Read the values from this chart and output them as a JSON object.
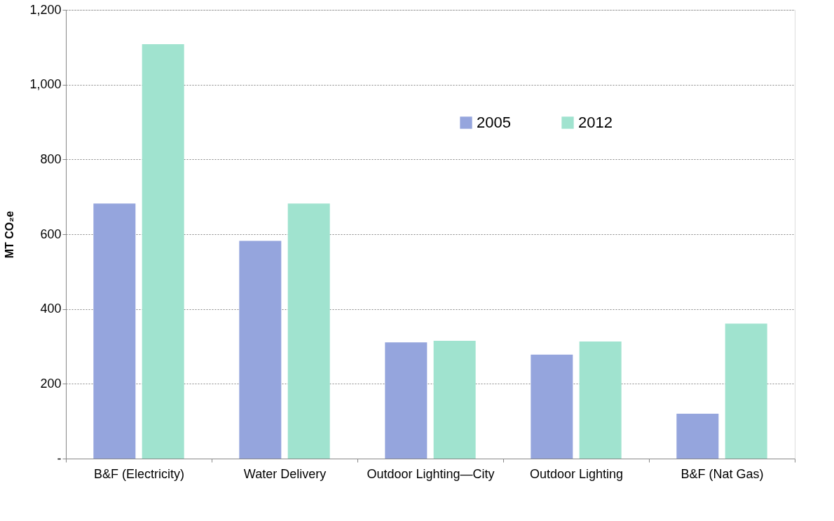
{
  "chart_data": {
    "type": "bar",
    "ylabel": "MT CO₂e",
    "categories": [
      "B&F (Electricity)",
      "Water Delivery",
      "Outdoor Lighting—City",
      "Outdoor Lighting",
      "B&F (Nat Gas)"
    ],
    "series": [
      {
        "name": "2005",
        "color": "#95a5dd",
        "values": [
          682,
          582,
          311,
          278,
          120
        ]
      },
      {
        "name": "2012",
        "color": "#a0e3cf",
        "values": [
          1108,
          682,
          315,
          313,
          361
        ]
      }
    ],
    "ylim": [
      0,
      1200
    ],
    "yticks": [
      {
        "value": 0,
        "label": "-"
      },
      {
        "value": 200,
        "label": "200"
      },
      {
        "value": 400,
        "label": "400"
      },
      {
        "value": 600,
        "label": "600"
      },
      {
        "value": 800,
        "label": "800"
      },
      {
        "value": 1000,
        "label": "1,000"
      },
      {
        "value": 1200,
        "label": "1,200"
      }
    ],
    "grid": "y",
    "legend": "top right"
  }
}
